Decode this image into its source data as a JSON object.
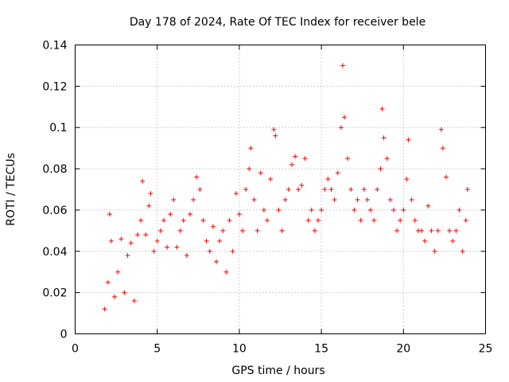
{
  "chart_data": {
    "type": "scatter",
    "title": "Day 178 of 2024, Rate Of TEC Index for receiver bele",
    "xlabel": "GPS time / hours",
    "ylabel": "ROTI / TECUs",
    "xlim": [
      0,
      25
    ],
    "ylim": [
      0,
      0.14
    ],
    "xticks": [
      0,
      5,
      10,
      15,
      20,
      25
    ],
    "yticks": [
      0,
      0.02,
      0.04,
      0.06,
      0.08,
      0.1,
      0.12,
      0.14
    ],
    "xtick_labels": [
      "0",
      "5",
      "10",
      "15",
      "20",
      "25"
    ],
    "ytick_labels": [
      "0",
      "0.02",
      "0.04",
      "0.06",
      "0.08",
      "0.1",
      "0.12",
      "0.14"
    ],
    "grid": true,
    "marker": "+",
    "color": "#ff0000",
    "series": [
      {
        "name": "ROTI",
        "points": [
          [
            1.8,
            0.012
          ],
          [
            2.0,
            0.025
          ],
          [
            2.1,
            0.058
          ],
          [
            2.2,
            0.045
          ],
          [
            2.4,
            0.018
          ],
          [
            2.6,
            0.03
          ],
          [
            2.8,
            0.046
          ],
          [
            3.0,
            0.02
          ],
          [
            3.2,
            0.038
          ],
          [
            3.4,
            0.044
          ],
          [
            3.6,
            0.016
          ],
          [
            3.8,
            0.048
          ],
          [
            4.0,
            0.055
          ],
          [
            4.1,
            0.074
          ],
          [
            4.3,
            0.048
          ],
          [
            4.5,
            0.062
          ],
          [
            4.6,
            0.068
          ],
          [
            4.8,
            0.04
          ],
          [
            5.0,
            0.045
          ],
          [
            5.2,
            0.05
          ],
          [
            5.4,
            0.055
          ],
          [
            5.6,
            0.042
          ],
          [
            5.8,
            0.058
          ],
          [
            6.0,
            0.065
          ],
          [
            6.2,
            0.042
          ],
          [
            6.4,
            0.05
          ],
          [
            6.6,
            0.055
          ],
          [
            6.8,
            0.038
          ],
          [
            7.0,
            0.058
          ],
          [
            7.2,
            0.065
          ],
          [
            7.4,
            0.076
          ],
          [
            7.6,
            0.07
          ],
          [
            7.8,
            0.055
          ],
          [
            8.0,
            0.045
          ],
          [
            8.2,
            0.04
          ],
          [
            8.4,
            0.052
          ],
          [
            8.6,
            0.035
          ],
          [
            8.8,
            0.045
          ],
          [
            9.0,
            0.05
          ],
          [
            9.2,
            0.03
          ],
          [
            9.4,
            0.055
          ],
          [
            9.6,
            0.04
          ],
          [
            9.8,
            0.068
          ],
          [
            10.0,
            0.058
          ],
          [
            10.2,
            0.05
          ],
          [
            10.4,
            0.07
          ],
          [
            10.6,
            0.08
          ],
          [
            10.7,
            0.09
          ],
          [
            10.9,
            0.065
          ],
          [
            11.1,
            0.05
          ],
          [
            11.3,
            0.078
          ],
          [
            11.5,
            0.06
          ],
          [
            11.7,
            0.055
          ],
          [
            11.9,
            0.075
          ],
          [
            12.1,
            0.099
          ],
          [
            12.2,
            0.096
          ],
          [
            12.4,
            0.06
          ],
          [
            12.6,
            0.05
          ],
          [
            12.8,
            0.065
          ],
          [
            13.0,
            0.07
          ],
          [
            13.2,
            0.082
          ],
          [
            13.4,
            0.086
          ],
          [
            13.6,
            0.07
          ],
          [
            13.8,
            0.072
          ],
          [
            14.0,
            0.085
          ],
          [
            14.2,
            0.055
          ],
          [
            14.4,
            0.06
          ],
          [
            14.6,
            0.05
          ],
          [
            14.8,
            0.055
          ],
          [
            15.0,
            0.06
          ],
          [
            15.2,
            0.07
          ],
          [
            15.4,
            0.075
          ],
          [
            15.6,
            0.07
          ],
          [
            15.8,
            0.065
          ],
          [
            16.0,
            0.078
          ],
          [
            16.2,
            0.1
          ],
          [
            16.3,
            0.13
          ],
          [
            16.4,
            0.105
          ],
          [
            16.6,
            0.085
          ],
          [
            16.8,
            0.07
          ],
          [
            17.0,
            0.06
          ],
          [
            17.2,
            0.065
          ],
          [
            17.4,
            0.055
          ],
          [
            17.6,
            0.07
          ],
          [
            17.8,
            0.065
          ],
          [
            18.0,
            0.06
          ],
          [
            18.2,
            0.055
          ],
          [
            18.4,
            0.07
          ],
          [
            18.6,
            0.08
          ],
          [
            18.7,
            0.109
          ],
          [
            18.8,
            0.095
          ],
          [
            19.0,
            0.085
          ],
          [
            19.2,
            0.065
          ],
          [
            19.4,
            0.06
          ],
          [
            19.6,
            0.05
          ],
          [
            19.8,
            0.055
          ],
          [
            20.0,
            0.06
          ],
          [
            20.2,
            0.075
          ],
          [
            20.3,
            0.094
          ],
          [
            20.5,
            0.065
          ],
          [
            20.7,
            0.055
          ],
          [
            20.9,
            0.05
          ],
          [
            21.1,
            0.05
          ],
          [
            21.3,
            0.045
          ],
          [
            21.5,
            0.062
          ],
          [
            21.7,
            0.05
          ],
          [
            21.9,
            0.04
          ],
          [
            22.1,
            0.05
          ],
          [
            22.3,
            0.099
          ],
          [
            22.4,
            0.09
          ],
          [
            22.6,
            0.076
          ],
          [
            22.8,
            0.05
          ],
          [
            23.0,
            0.045
          ],
          [
            23.2,
            0.05
          ],
          [
            23.4,
            0.06
          ],
          [
            23.6,
            0.04
          ],
          [
            23.8,
            0.055
          ],
          [
            23.9,
            0.07
          ]
        ]
      }
    ]
  }
}
